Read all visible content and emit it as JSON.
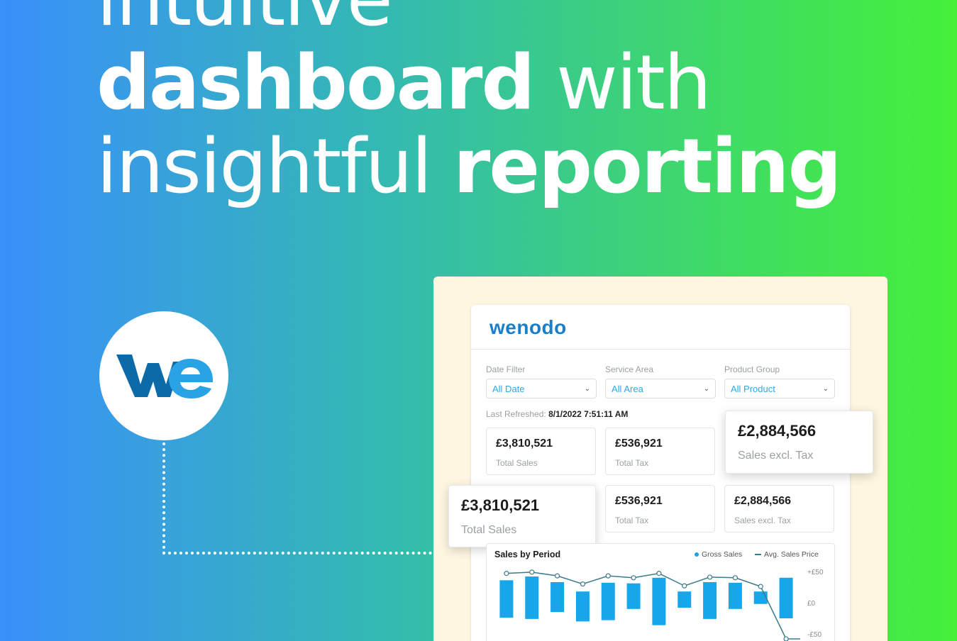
{
  "headline": {
    "line1": [
      {
        "text": "intuitive",
        "bold": false
      }
    ],
    "line2": [
      {
        "text": "dashboard",
        "bold": true
      },
      {
        "text": " with",
        "bold": false
      }
    ],
    "line3": [
      {
        "text": "insightful ",
        "bold": false
      },
      {
        "text": "reporting",
        "bold": true
      }
    ]
  },
  "colors": {
    "brand_blue": "#1a7fc9",
    "accent_blue": "#2ea7e0",
    "bar_blue": "#17a6ea",
    "line_color": "#3c7a8a",
    "logo_dark": "#0c6aa8",
    "logo_light": "#2aa3e6"
  },
  "logo": {
    "icon": "wenodo-logo-icon"
  },
  "dashboard": {
    "brand": "wenodo",
    "filters": [
      {
        "label": "Date Filter",
        "value": "All Date"
      },
      {
        "label": "Service Area",
        "value": "All Area"
      },
      {
        "label": "Product Group",
        "value": "All Product"
      }
    ],
    "refresh_label": "Last Refreshed:",
    "refresh_value": "8/1/2022 7:51:11 AM",
    "kpis_row1": [
      {
        "value": "£3,810,521",
        "label": "Total Sales"
      },
      {
        "value": "£536,921",
        "label": "Total Tax"
      }
    ],
    "kpis_row2": [
      {
        "value": "£536,921",
        "label": "Total Tax"
      },
      {
        "value": "£2,884,566",
        "label": "Sales excl. Tax"
      }
    ],
    "callout_right": {
      "value": "£2,884,566",
      "label": "Sales excl. Tax"
    },
    "callout_left": {
      "value": "£3,810,521",
      "label": "Total Sales"
    }
  },
  "chart_data": {
    "type": "bar",
    "title": "Sales by Period",
    "legend": [
      "Gross Sales",
      "Avg. Sales Price"
    ],
    "legend_position": "top-right",
    "y_ticks": [
      "+£50",
      "£0",
      "-£50"
    ],
    "ylim": [
      -50,
      50
    ],
    "series": [
      {
        "name": "Gross Sales",
        "kind": "range-bar",
        "values": [
          [
            -24,
            36
          ],
          [
            -26,
            42
          ],
          [
            -15,
            33
          ],
          [
            -30,
            18
          ],
          [
            -28,
            32
          ],
          [
            -10,
            31
          ],
          [
            -36,
            40
          ],
          [
            -8,
            18
          ],
          [
            -26,
            33
          ],
          [
            -10,
            32
          ],
          [
            -2,
            18
          ],
          [
            -25,
            40
          ]
        ]
      },
      {
        "name": "Avg. Sales Price",
        "kind": "line",
        "values": [
          47,
          49,
          43,
          30,
          43,
          40,
          47,
          27,
          41,
          40,
          26,
          -58
        ]
      }
    ],
    "grid": false
  }
}
